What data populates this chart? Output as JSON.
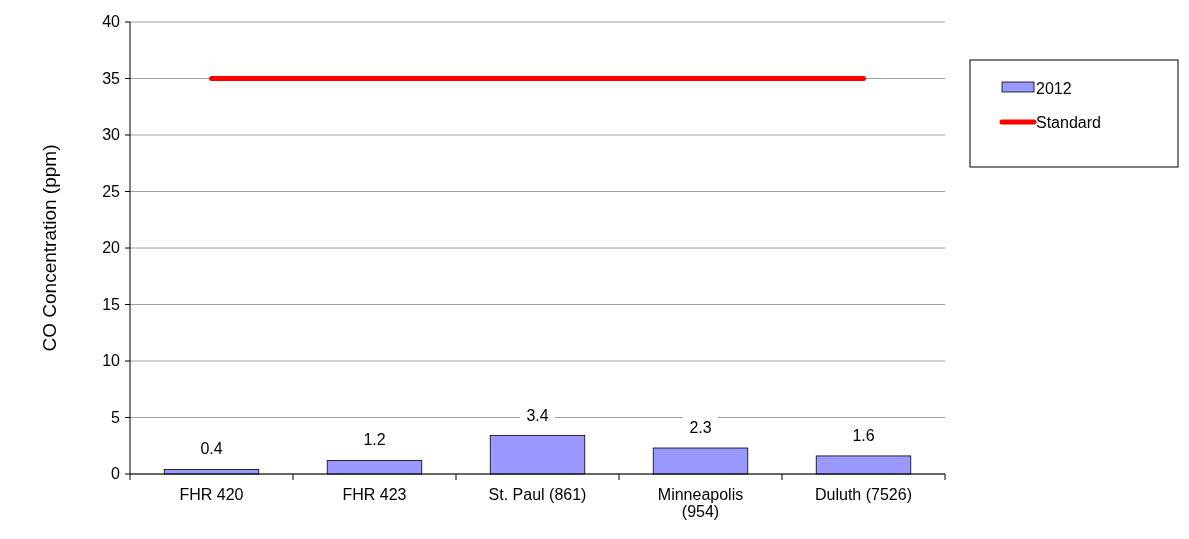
{
  "chart_data": {
    "type": "bar",
    "ylabel": "CO Concentration (ppm)",
    "categories": [
      "FHR 420",
      "FHR 423",
      "St. Paul (861)",
      "Minneapolis (954)",
      "Duluth (7526)"
    ],
    "series": [
      {
        "name": "2012",
        "color": "#9999ff",
        "values": [
          0.4,
          1.2,
          3.4,
          2.3,
          1.6
        ],
        "value_labels": [
          "0.4",
          "1.2",
          "3.4",
          "2.3",
          "1.6"
        ]
      },
      {
        "name": "Standard",
        "type": "line",
        "color": "#ff0000",
        "values": [
          35,
          35,
          35,
          35,
          35
        ]
      }
    ],
    "ylim": [
      0,
      40
    ],
    "yticks": [
      0,
      5,
      10,
      15,
      20,
      25,
      30,
      35,
      40
    ],
    "grid": "y",
    "legend": "right",
    "marker": "none",
    "line_style": "solid"
  }
}
